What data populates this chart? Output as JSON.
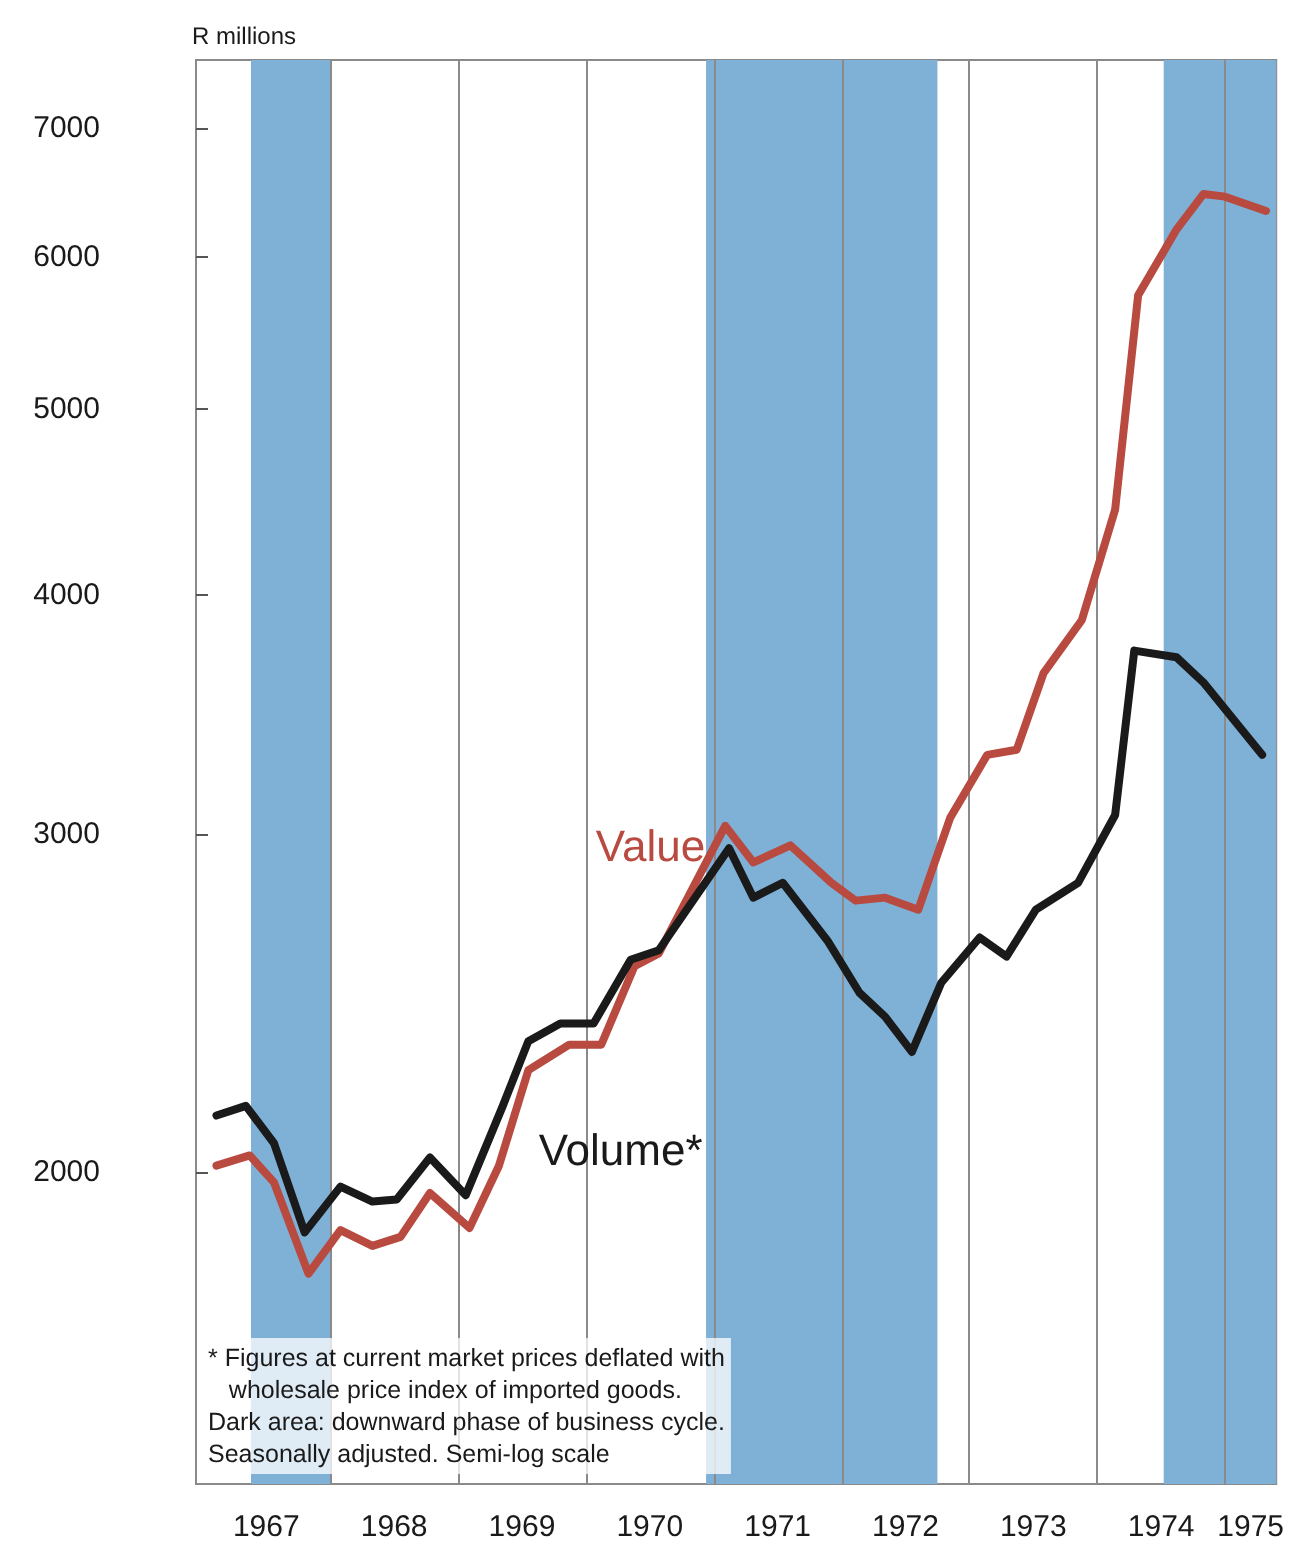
{
  "chart_data": {
    "type": "line",
    "ylabel": "R millions",
    "log": "y",
    "grid": false,
    "legend": false,
    "marker": "none",
    "line_style": "solid",
    "xlim": [
      1966.95,
      1975.4
    ],
    "ylim": [
      1375,
      7600
    ],
    "xticks": [
      {
        "value": 1967.5,
        "label": "1967"
      },
      {
        "value": 1968.5,
        "label": "1968"
      },
      {
        "value": 1969.5,
        "label": "1969"
      },
      {
        "value": 1970.5,
        "label": "1970"
      },
      {
        "value": 1971.5,
        "label": "1971"
      },
      {
        "value": 1972.5,
        "label": "1972"
      },
      {
        "value": 1973.5,
        "label": "1973"
      },
      {
        "value": 1974.5,
        "label": "1974"
      },
      {
        "value": 1975.2,
        "label": "1975"
      }
    ],
    "yticks": [
      2000,
      3000,
      4000,
      5000,
      6000,
      7000
    ],
    "series": [
      {
        "name": "Value",
        "color": "#b84a40",
        "x": [
          1967.11,
          1967.37,
          1967.56,
          1967.83,
          1968.08,
          1968.33,
          1968.55,
          1968.78,
          1969.09,
          1969.32,
          1969.55,
          1969.87,
          1970.12,
          1970.38,
          1970.57,
          1971.09,
          1971.31,
          1971.6,
          1971.92,
          1972.11,
          1972.34,
          1972.6,
          1972.85,
          1973.14,
          1973.37,
          1973.58,
          1973.88,
          1974.14,
          1974.32,
          1974.62,
          1974.83,
          1975.0,
          1975.32
        ],
        "values": [
          2015,
          2040,
          1975,
          1770,
          1865,
          1830,
          1850,
          1950,
          1870,
          2015,
          2260,
          2330,
          2330,
          2560,
          2600,
          3030,
          2900,
          2960,
          2830,
          2770,
          2780,
          2740,
          3060,
          3300,
          3320,
          3640,
          3880,
          4430,
          5730,
          6200,
          6470,
          6450,
          6340
        ]
      },
      {
        "name": "Volume*",
        "color": "#1a1a1a",
        "x": [
          1967.11,
          1967.34,
          1967.56,
          1967.8,
          1968.08,
          1968.33,
          1968.52,
          1968.78,
          1969.06,
          1969.35,
          1969.55,
          1969.8,
          1970.06,
          1970.35,
          1970.57,
          1971.12,
          1971.31,
          1971.54,
          1971.89,
          1972.14,
          1972.34,
          1972.55,
          1972.78,
          1973.08,
          1973.29,
          1973.52,
          1973.85,
          1974.14,
          1974.29,
          1974.62,
          1974.83,
          1975.29
        ],
        "values": [
          2140,
          2165,
          2070,
          1860,
          1965,
          1930,
          1935,
          2035,
          1945,
          2165,
          2340,
          2390,
          2390,
          2580,
          2610,
          2950,
          2780,
          2830,
          2640,
          2480,
          2410,
          2310,
          2510,
          2650,
          2590,
          2740,
          2830,
          3070,
          3740,
          3710,
          3600,
          3300
        ]
      }
    ],
    "bands": [
      {
        "axis": "x",
        "from": 1967.38,
        "to": 1968.0,
        "color": "#7fb0d6"
      },
      {
        "axis": "x",
        "from": 1970.94,
        "to": 1972.75,
        "color": "#7fb0d6"
      },
      {
        "axis": "x",
        "from": 1974.52,
        "to": 1975.4,
        "color": "#7fb0d6"
      }
    ],
    "ref_lines": [
      {
        "axis": "x",
        "value": 1968
      },
      {
        "axis": "x",
        "value": 1969
      },
      {
        "axis": "x",
        "value": 1970
      },
      {
        "axis": "x",
        "value": 1971
      },
      {
        "axis": "x",
        "value": 1972
      },
      {
        "axis": "x",
        "value": 1973
      },
      {
        "axis": "x",
        "value": 1974
      },
      {
        "axis": "x",
        "value": 1975
      }
    ],
    "annotations": [
      "* Figures at current market prices deflated with wholesale price index of imported goods.",
      "Dark area: downward phase of business cycle.",
      "Seasonally adjusted. Semi-log scale"
    ]
  }
}
